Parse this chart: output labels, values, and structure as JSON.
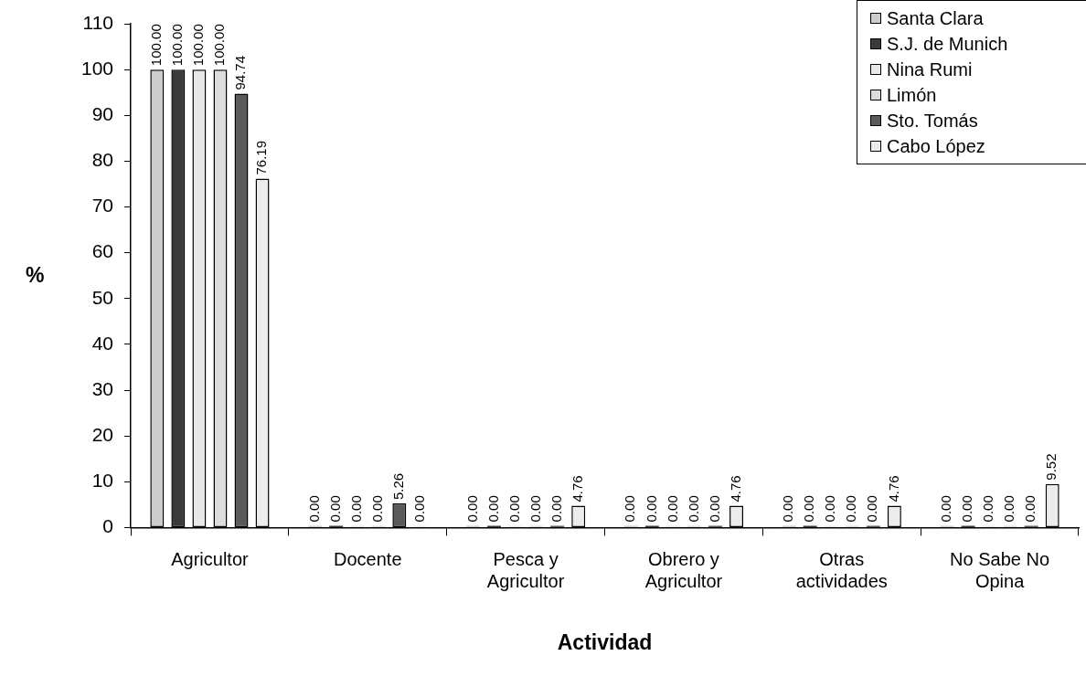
{
  "chart_data": {
    "type": "bar",
    "xlabel": "Actividad",
    "ylabel": "%",
    "categories": [
      "Agricultor",
      "Docente",
      "Pesca y Agricultor",
      "Obrero y Agricultor",
      "Otras actividades",
      "No Sabe No Opina"
    ],
    "series": [
      {
        "name": "Santa Clara",
        "color": "#cccccc",
        "values": [
          100,
          0,
          0,
          0,
          0,
          0
        ],
        "value_labels": [
          "100.00",
          "0.00",
          "0.00",
          "0.00",
          "0.00",
          "0.00"
        ]
      },
      {
        "name": "S.J. de Munich",
        "color": "#3a3a3a",
        "values": [
          100,
          0,
          0,
          0,
          0,
          0
        ],
        "value_labels": [
          "100.00",
          "0.00",
          "0.00",
          "0.00",
          "0.00",
          "0.00"
        ]
      },
      {
        "name": "Nina Rumi",
        "color": "#e8e8e8",
        "values": [
          100,
          0,
          0,
          0,
          0,
          0
        ],
        "value_labels": [
          "100.00",
          "0.00",
          "0.00",
          "0.00",
          "0.00",
          "0.00"
        ]
      },
      {
        "name": "Limón",
        "color": "#dddddd",
        "values": [
          100,
          0,
          0,
          0,
          0,
          0
        ],
        "value_labels": [
          "100.00",
          "0.00",
          "0.00",
          "0.00",
          "0.00",
          "0.00"
        ]
      },
      {
        "name": "Sto. Tomás",
        "color": "#5a5a5a",
        "values": [
          94.74,
          5.26,
          0,
          0,
          0,
          0
        ],
        "value_labels": [
          "94.74",
          "5.26",
          "0.00",
          "0.00",
          "0.00",
          "0.00"
        ]
      },
      {
        "name": "Cabo López",
        "color": "#ececec",
        "values": [
          76.19,
          0,
          4.76,
          4.76,
          4.76,
          9.52
        ],
        "value_labels": [
          "76.19",
          "0.00",
          "4.76",
          "4.76",
          "4.76",
          "9.52"
        ]
      }
    ],
    "ylim": [
      0,
      110
    ],
    "yticks": [
      0,
      10,
      20,
      30,
      40,
      50,
      60,
      70,
      80,
      90,
      100,
      110
    ],
    "grid": false,
    "legend": "top right"
  }
}
